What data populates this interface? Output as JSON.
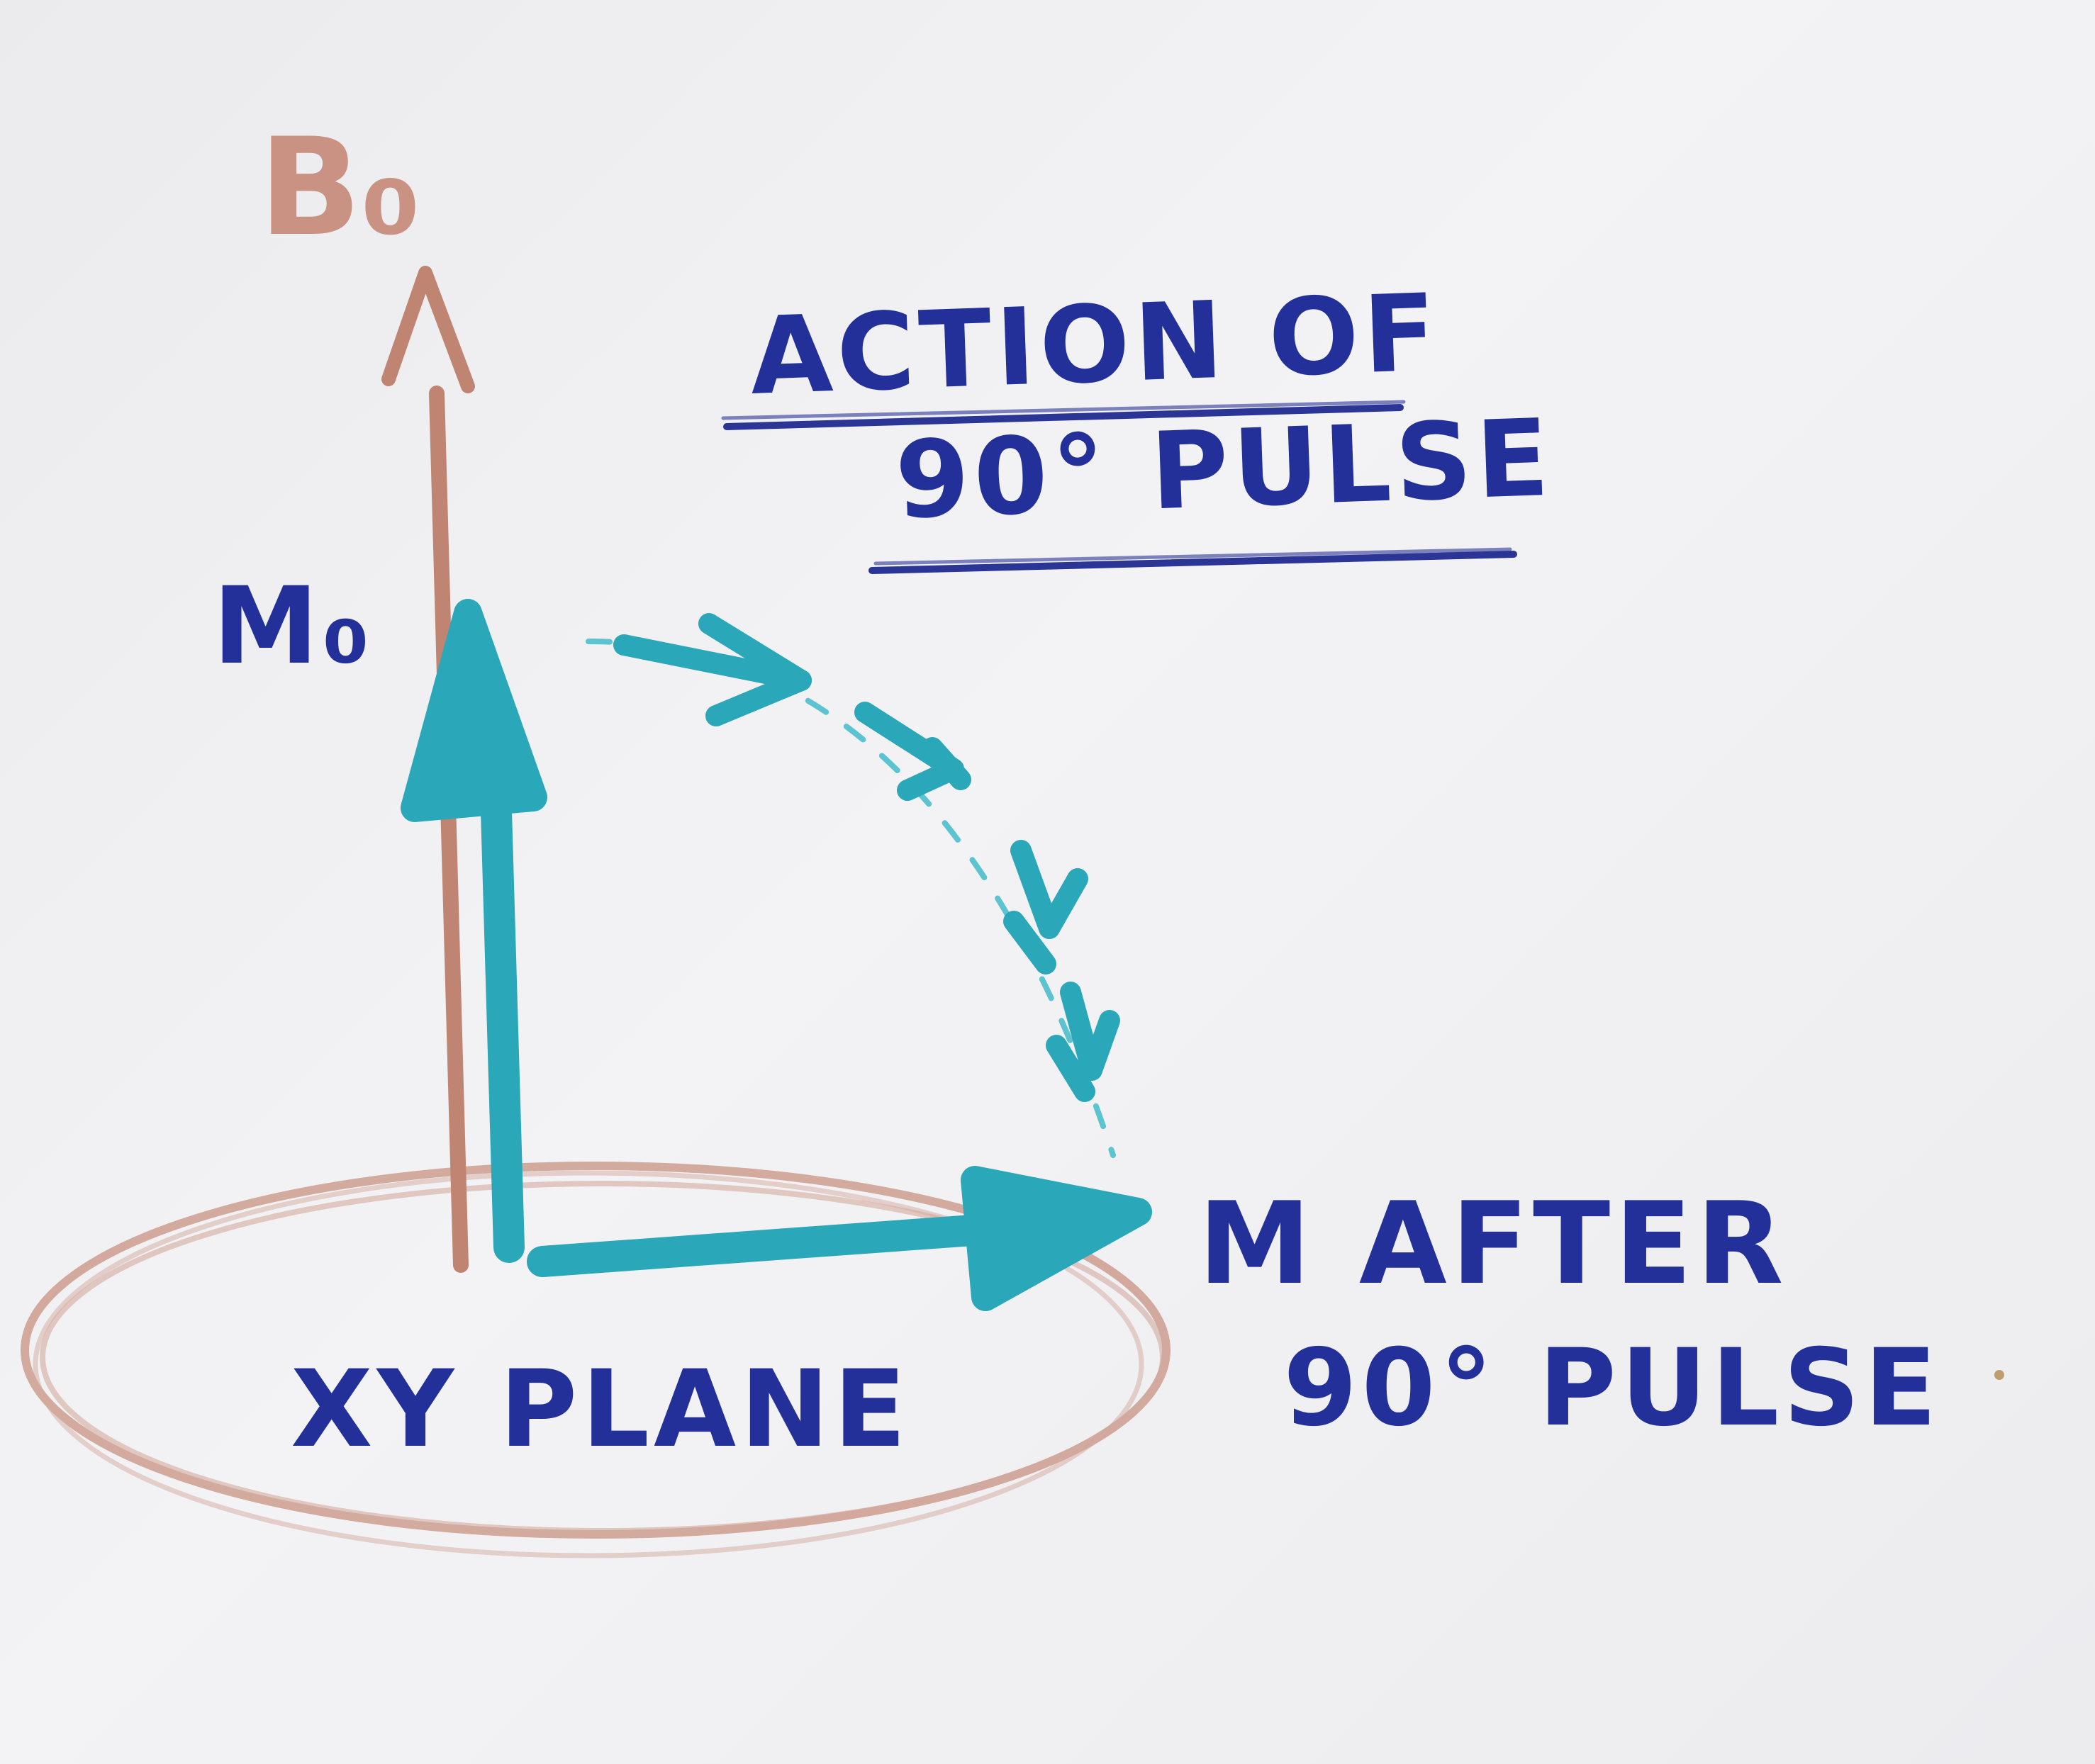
{
  "labels": {
    "b0": "B₀",
    "m0": "M₀",
    "title_line1": "ACTION OF",
    "title_line2": "90° PULSE",
    "m_after_line1": "M AFTER",
    "m_after_line2": "90° PULSE",
    "xy_plane": "XY PLANE"
  },
  "colors": {
    "paper": "#efeff2",
    "blue_ink": "#23309a",
    "teal": "#2aa7b8",
    "teal_light": "#5cc3d0",
    "red_pencil": "#c99282"
  }
}
